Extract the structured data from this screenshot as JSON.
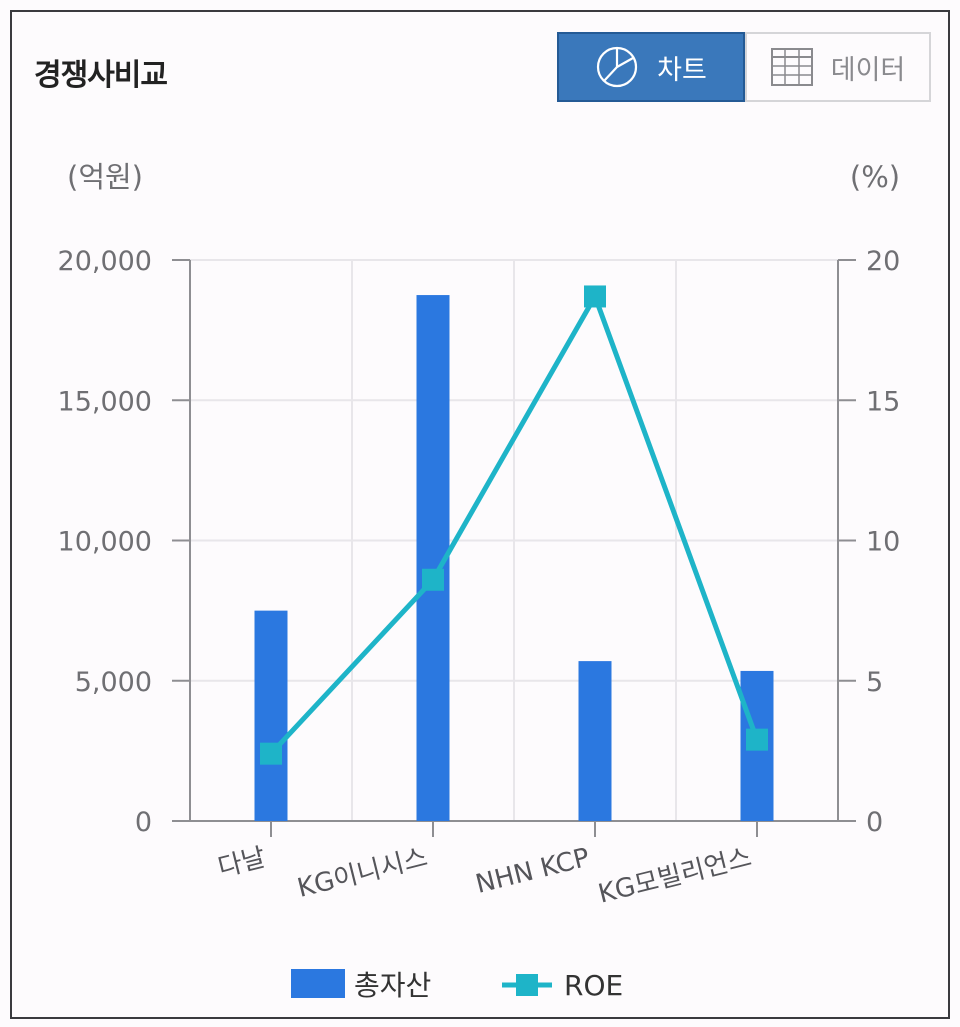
{
  "header": {
    "title": "경쟁사비교",
    "chart_button_label": "차트",
    "data_button_label": "데이터"
  },
  "colors": {
    "bar": "#2b78e0",
    "line": "#1eb4c8",
    "button_active": "#3a78bb"
  },
  "chart_data": {
    "type": "bar",
    "categories": [
      "다날",
      "KG이니시스",
      "NHN KCP",
      "KG모빌리언스"
    ],
    "series": [
      {
        "name": "총자산",
        "type": "bar",
        "axis": "left",
        "values": [
          7500,
          18750,
          5700,
          5350
        ]
      },
      {
        "name": "ROE",
        "type": "line",
        "axis": "right",
        "values": [
          2.4,
          8.6,
          18.7,
          2.9
        ]
      }
    ],
    "y_left": {
      "unit_label": "(억원)",
      "range": [
        0,
        20000
      ],
      "ticks": [
        "0",
        "5,000",
        "10,000",
        "15,000",
        "20,000"
      ]
    },
    "y_right": {
      "unit_label": "(%)",
      "range": [
        0,
        20
      ],
      "ticks": [
        "0",
        "5",
        "10",
        "15",
        "20"
      ]
    },
    "grid": true,
    "legend_position": "bottom"
  }
}
